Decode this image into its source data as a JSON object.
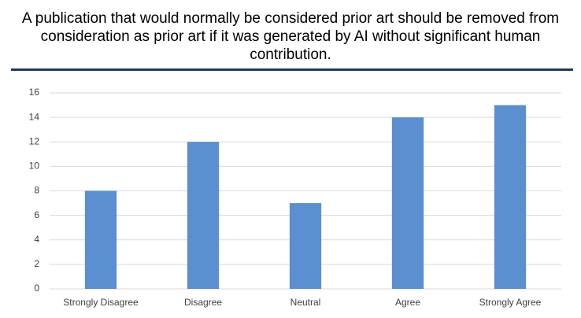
{
  "chart_data": {
    "type": "bar",
    "title": "A publication that would normally be considered prior art should be removed from consideration as prior art if it was generated by AI without significant human contribution.",
    "categories": [
      "Strongly Disagree",
      "Disagree",
      "Neutral",
      "Agree",
      "Strongly Agree"
    ],
    "values": [
      8,
      12,
      7,
      14,
      15
    ],
    "color": "#5b8fcf",
    "ylim": [
      0,
      16
    ],
    "yticks": [
      0,
      2,
      4,
      6,
      8,
      10,
      12,
      14,
      16
    ],
    "grid": true
  }
}
